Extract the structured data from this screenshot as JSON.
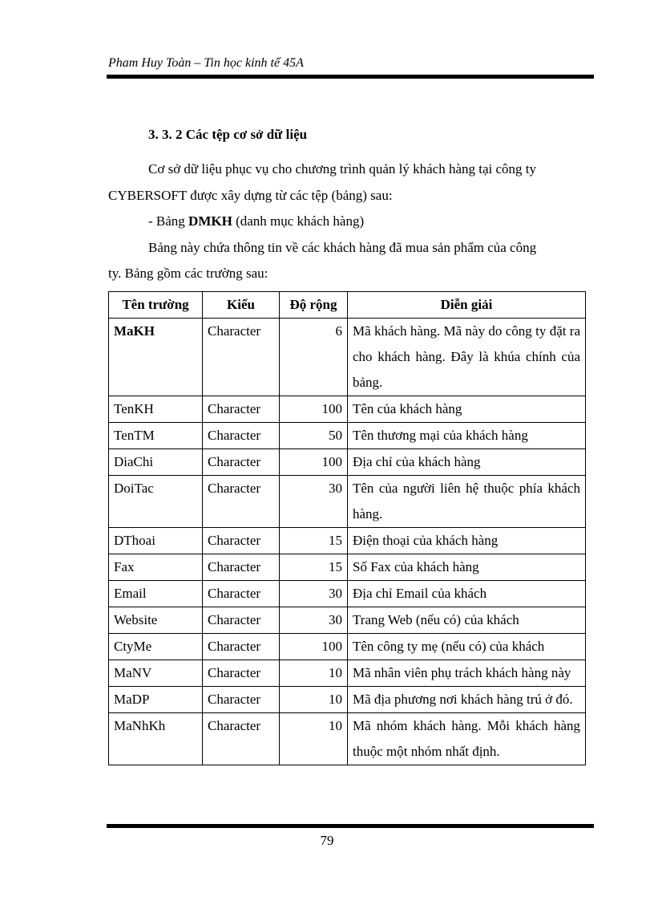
{
  "header": {
    "running_title": "Pham Huy Toàn – Tin học kinh tế 45A"
  },
  "section_heading": "3. 3. 2 Các tệp cơ sở dữ liệu",
  "paragraphs": {
    "p1_line1": "Cơ sở dữ liệu  phục vụ cho chương trình quản lý khách hàng tại công ty",
    "p1_line2": "CYBERSOFT được xây dựng từ các tệp (bảng) sau:",
    "bullet_prefix": "- Bảng ",
    "bullet_bold": "DMKH",
    "bullet_suffix": " (danh mục khách hàng)",
    "p2_line1": "Bảng này chứa thông tin về các khách hàng đã mua sản phẩm của công",
    "p2_line2": "ty. Bảng gồm các trường sau:"
  },
  "table": {
    "headers": [
      "Tên trường",
      "Kiểu",
      "Độ rộng",
      "Diễn giải"
    ],
    "rows": [
      {
        "field": "MaKH",
        "type": "Character",
        "width": "6",
        "desc": "Mã khách hàng. Mã này do công ty đặt ra cho khách hàng. Đây là khúa chính của bảng."
      },
      {
        "field": "TenKH",
        "type": "Character",
        "width": "100",
        "desc": "Tên của khách hàng"
      },
      {
        "field": "TenTM",
        "type": "Character",
        "width": "50",
        "desc": "Tên thương mại của khách hàng"
      },
      {
        "field": "DiaChi",
        "type": "Character",
        "width": "100",
        "desc": "Địa chỉ của khách hàng"
      },
      {
        "field": "DoiTac",
        "type": "Character",
        "width": "30",
        "desc": "Tên của người liên hệ thuộc phía khách hàng."
      },
      {
        "field": "DThoai",
        "type": "Character",
        "width": "15",
        "desc": "Điện thoại của khách hàng"
      },
      {
        "field": "Fax",
        "type": "Character",
        "width": "15",
        "desc": "Số Fax của khách hàng"
      },
      {
        "field": "Email",
        "type": "Character",
        "width": "30",
        "desc": "Địa chỉ Email  của khách"
      },
      {
        "field": "Website",
        "type": "Character",
        "width": "30",
        "desc": "Trang Web (nếu có) của khách"
      },
      {
        "field": "CtyMe",
        "type": "Character",
        "width": "100",
        "desc": "Tên công ty mẹ (nếu có) của khách"
      },
      {
        "field": "MaNV",
        "type": "Character",
        "width": "10",
        "desc": "Mã nhân viên phụ trách khách hàng này"
      },
      {
        "field": "MaDP",
        "type": "Character",
        "width": "10",
        "desc": "Mã địa phương nơi khách hàng trú ở đó."
      },
      {
        "field": "MaNhKh",
        "type": "Character",
        "width": "10",
        "desc": "Mã nhóm khách hàng. Mỗi khách hàng thuộc một nhóm nhất định."
      }
    ]
  },
  "footer": {
    "page_number": "79"
  }
}
